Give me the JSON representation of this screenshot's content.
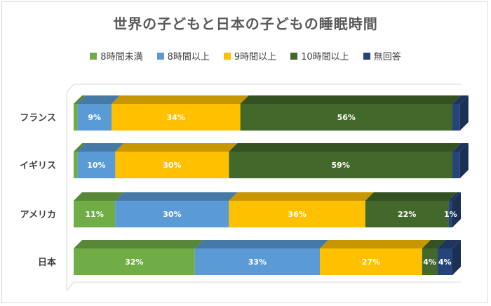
{
  "chart_data": {
    "type": "bar",
    "orientation": "horizontal",
    "stacked": "percent",
    "style": "3d",
    "title": "世界の子どもと日本の子どもの睡眠時間",
    "categories": [
      "フランス",
      "イギリス",
      "アメリカ",
      "日本"
    ],
    "series": [
      {
        "name": "8時間未満",
        "color": "#70ad47",
        "values": [
          1,
          1,
          11,
          32
        ],
        "labels": [
          "",
          "",
          "11%",
          "32%"
        ]
      },
      {
        "name": "8時間以上",
        "color": "#5b9bd5",
        "values": [
          9,
          10,
          30,
          33
        ],
        "labels": [
          "9%",
          "10%",
          "30%",
          "33%"
        ]
      },
      {
        "name": "9時間以上",
        "color": "#ffc000",
        "values": [
          34,
          30,
          36,
          27
        ],
        "labels": [
          "34%",
          "30%",
          "36%",
          "27%"
        ]
      },
      {
        "name": "10時間以上",
        "color": "#43682b",
        "values": [
          56,
          59,
          22,
          4
        ],
        "labels": [
          "56%",
          "59%",
          "22%",
          "4%"
        ]
      },
      {
        "name": "無回答",
        "color": "#264478",
        "values": [
          2,
          2,
          1,
          4
        ],
        "labels": [
          "",
          "",
          "1%",
          "4%"
        ]
      }
    ],
    "xlim": [
      0,
      100
    ],
    "legend": "top"
  }
}
